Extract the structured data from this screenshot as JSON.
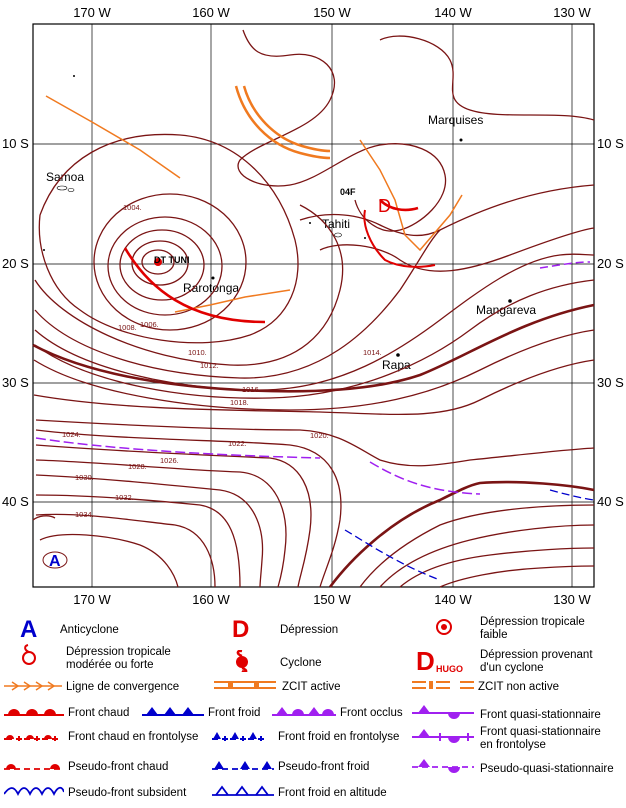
{
  "map": {
    "longitudes_top": [
      "170 W",
      "160 W",
      "150 W",
      "140 W",
      "130 W"
    ],
    "longitudes_bottom": [
      "170 W",
      "160 W",
      "150 W",
      "140 W",
      "130 W"
    ],
    "latitudes": [
      "10 S",
      "20 S",
      "30 S",
      "40 S"
    ],
    "places": {
      "samoa": "Samoa",
      "tahiti": "Tahiti",
      "marquises": "Marquises",
      "rarotonga": "Rarotonga",
      "mangareva": "Mangareva",
      "rapa": "Rapa"
    },
    "systems": {
      "dt_tuni": "DT TUNI",
      "label_04f": "04F",
      "anticyclone_letter": "A",
      "depression_letter": "D"
    },
    "isobar_values": [
      "1004.",
      "1006.",
      "1008.",
      "1010.",
      "1012.",
      "1014.",
      "1016.",
      "1018.",
      "1020.",
      "1022.",
      "1024.",
      "1026.",
      "1028.",
      "1030.",
      "1032.",
      "1034."
    ],
    "colors": {
      "isobar": "#7a1414",
      "warm_front": "#e00000",
      "cold_front": "#0000cc",
      "occluded_front": "#a020f0",
      "convergence": "#f07a20",
      "itcz": "#f07a20"
    }
  },
  "legend": {
    "anticyclone": "Anticyclone",
    "depression": "Dépression",
    "weak_tropical_depression": "Dépression tropicale faible",
    "moderate_tropical_depression": "Dépression tropicale modérée ou forte",
    "cyclone": "Cyclone",
    "cyclone_remnant": "Dépression provenant d'un cyclone",
    "hugo": "HUGO",
    "convergence_line": "Ligne de convergence",
    "itcz_active": "ZCIT active",
    "itcz_inactive": "ZCIT non active",
    "warm_front": "Front chaud",
    "cold_front": "Front froid",
    "occluded_front": "Front occlus",
    "quasi_stationary_front": "Front quasi-stationnaire",
    "warm_frontolysis": "Front chaud en frontolyse",
    "cold_frontolysis": "Front froid en frontolyse",
    "quasi_stationary_frontolysis": "Front quasi-stationnaire en frontolyse",
    "pseudo_warm_front": "Pseudo-front chaud",
    "pseudo_cold_front": "Pseudo-front froid",
    "pseudo_quasi_stationary": "Pseudo-quasi-stationnaire",
    "pseudo_subsident_front": "Pseudo-front subsident",
    "upper_cold_front": "Front froid en altitude"
  }
}
